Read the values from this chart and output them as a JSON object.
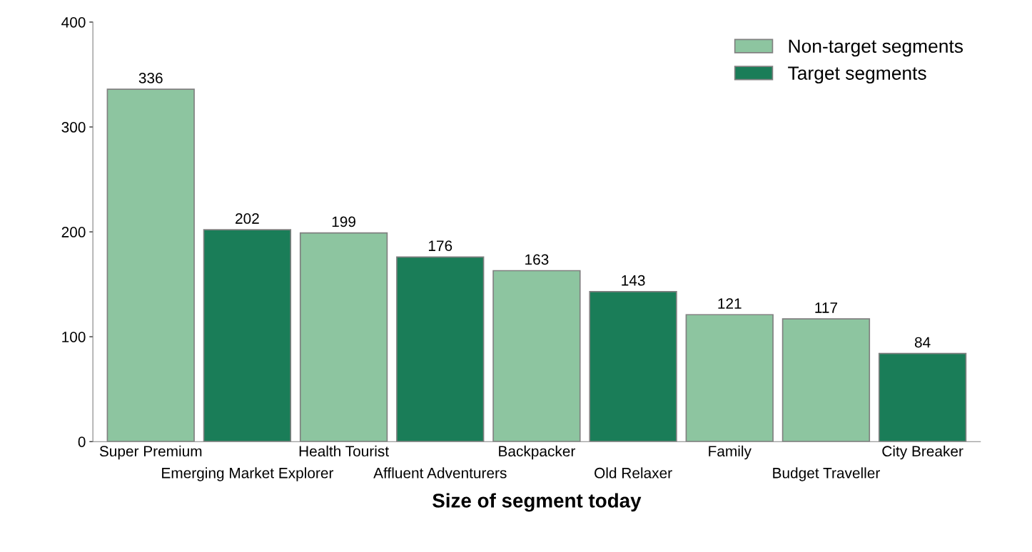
{
  "chart_data": {
    "type": "bar",
    "xlabel": "Size of segment today",
    "categories": [
      "Super Premium",
      "Emerging Market Explorer",
      "Health Tourist",
      "Affluent Adventurers",
      "Backpacker",
      "Old Relaxer",
      "Family",
      "Budget Traveller",
      "City Breaker"
    ],
    "series": [
      {
        "name": "Non-target segments",
        "color": "#8dc5a0",
        "values": [
          336,
          null,
          199,
          null,
          163,
          null,
          121,
          117,
          null
        ]
      },
      {
        "name": "Target segments",
        "color": "#1a7d58",
        "values": [
          null,
          202,
          null,
          176,
          null,
          143,
          null,
          null,
          84
        ]
      }
    ],
    "ylim": [
      0,
      400
    ],
    "yticks": [
      0,
      100,
      200,
      300,
      400
    ],
    "data_labels": true,
    "grid": false,
    "legend": "top right"
  }
}
